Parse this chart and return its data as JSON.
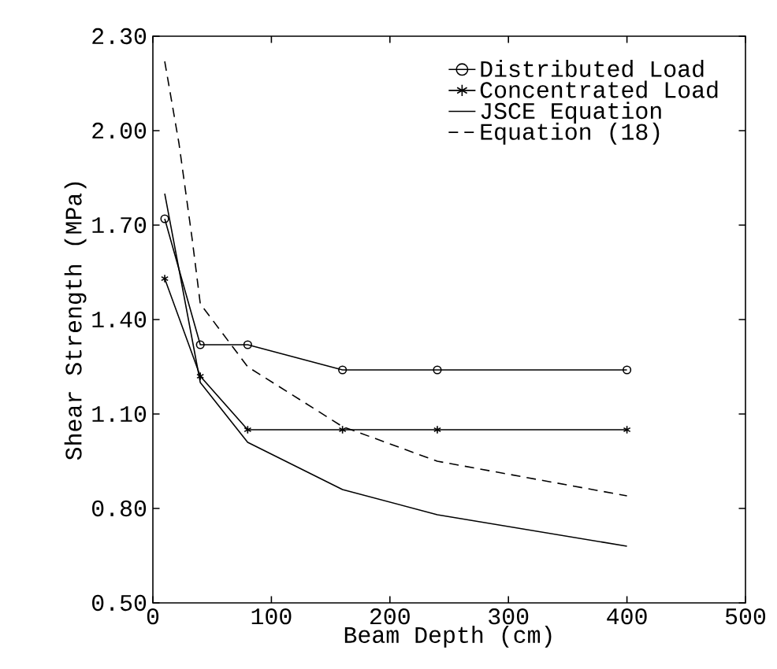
{
  "chart_data": {
    "type": "line",
    "xlabel": "Beam Depth (cm)",
    "ylabel": "Shear Strength (MPa)",
    "xlim": [
      0,
      500
    ],
    "xticks": [
      0,
      100,
      200,
      300,
      400,
      500
    ],
    "ylim": [
      0.5,
      2.3
    ],
    "yticks": [
      {
        "value": 0.5,
        "label": "0.50"
      },
      {
        "value": 0.8,
        "label": "0.80"
      },
      {
        "value": 1.1,
        "label": "1.10"
      },
      {
        "value": 1.4,
        "label": "1.40"
      },
      {
        "value": 1.7,
        "label": "1.70"
      },
      {
        "value": 2.0,
        "label": "2.00"
      },
      {
        "value": 2.3,
        "label": "2.30"
      }
    ],
    "legend": "top right",
    "grid": false,
    "series": [
      {
        "name": "Distributed Load",
        "color": "#000000",
        "marker": "circle",
        "line_style": "solid",
        "x": [
          10,
          40,
          80,
          160,
          240,
          400
        ],
        "values": [
          1.72,
          1.32,
          1.32,
          1.24,
          1.24,
          1.24
        ]
      },
      {
        "name": "Concentrated Load",
        "color": "#000000",
        "marker": "cross",
        "line_style": "solid",
        "x": [
          10,
          40,
          80,
          160,
          240,
          400
        ],
        "values": [
          1.53,
          1.22,
          1.05,
          1.05,
          1.05,
          1.05
        ]
      },
      {
        "name": "JSCE Equation",
        "color": "#000000",
        "marker": "none",
        "line_style": "solid",
        "x": [
          10,
          40,
          80,
          160,
          240,
          400
        ],
        "values": [
          1.8,
          1.2,
          1.01,
          0.86,
          0.78,
          0.68
        ]
      },
      {
        "name": "Equation (18)",
        "color": "#000000",
        "marker": "none",
        "line_style": "dashed",
        "x": [
          10,
          22,
          33,
          40,
          80,
          160,
          240,
          400
        ],
        "values": [
          2.22,
          1.96,
          1.66,
          1.45,
          1.25,
          1.06,
          0.95,
          0.84
        ]
      }
    ]
  }
}
